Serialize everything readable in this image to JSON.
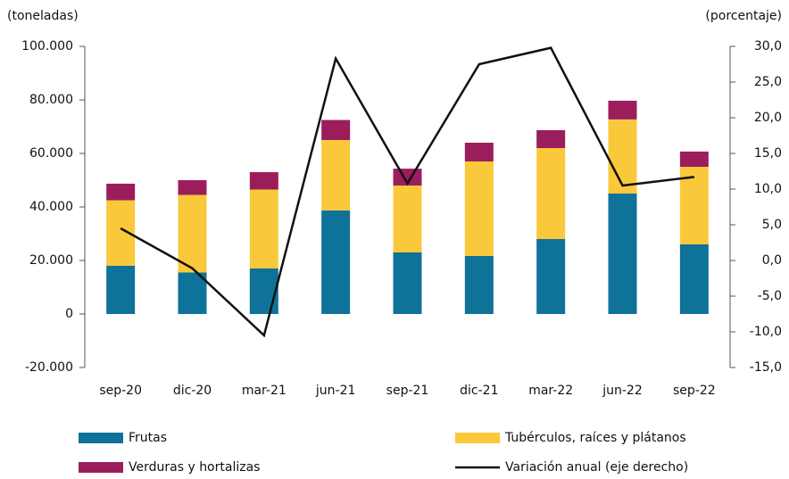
{
  "chart_data": {
    "type": "bar",
    "stacked": true,
    "y_label": "(toneladas)",
    "y2_label": "(porcentaje)",
    "categories": [
      "sep-20",
      "dic-20",
      "mar-21",
      "jun-21",
      "sep-21",
      "dic-21",
      "mar-22",
      "jun-22",
      "sep-22"
    ],
    "series": [
      {
        "name": "Frutas",
        "color": "#0e7299",
        "values": [
          18000,
          15500,
          17000,
          38700,
          23000,
          21700,
          28000,
          45000,
          26000
        ]
      },
      {
        "name": "Tubérculos, raíces y plátanos",
        "color": "#f9c93b",
        "values": [
          24500,
          29000,
          29500,
          26300,
          25000,
          35300,
          34000,
          27700,
          29000
        ]
      },
      {
        "name": "Verduras y hortalizas",
        "color": "#9c1d5c",
        "values": [
          6200,
          5500,
          6500,
          7500,
          6300,
          7000,
          6700,
          7000,
          5700
        ]
      },
      {
        "name": "Variación anual (eje derecho)",
        "color": "#111111",
        "type": "line",
        "axis": "y2",
        "values": [
          4.5,
          -1.1,
          -10.5,
          28.3,
          10.8,
          27.5,
          29.8,
          10.5,
          11.7
        ]
      }
    ],
    "ylim": [
      -20000,
      100000
    ],
    "yticks": [
      {
        "value": -20000,
        "label": "-20.000"
      },
      0,
      {
        "value": 20000,
        "label": "20.000"
      },
      {
        "value": 40000,
        "label": "40.000"
      },
      {
        "value": 60000,
        "label": "60.000"
      },
      {
        "value": 80000,
        "label": "80.000"
      },
      {
        "value": 100000,
        "label": "100.000"
      }
    ],
    "y2lim": [
      -15,
      30
    ],
    "y2ticks": [
      {
        "value": -15,
        "label": "-15,0"
      },
      {
        "value": -10,
        "label": "-10,0"
      },
      {
        "value": -5,
        "label": "-5,0"
      },
      {
        "value": 0,
        "label": "0,0"
      },
      {
        "value": 5,
        "label": "5,0"
      },
      {
        "value": 10,
        "label": "10,0"
      },
      {
        "value": 15,
        "label": "15,0"
      },
      {
        "value": 20,
        "label": "20,0"
      },
      {
        "value": 25,
        "label": "25,0"
      },
      {
        "value": 30,
        "label": "30,0"
      }
    ],
    "grid": false
  }
}
